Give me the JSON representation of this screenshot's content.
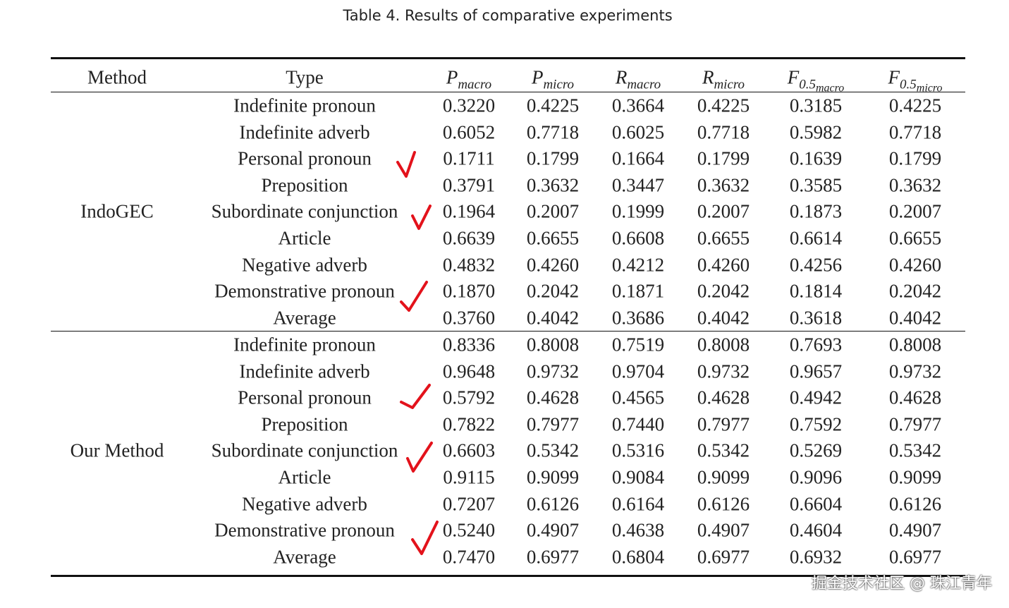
{
  "caption": "Table 4.  Results of comparative experiments",
  "header": {
    "method": "Method",
    "type": "Type",
    "metrics": [
      {
        "main": "P",
        "sub": "macro"
      },
      {
        "main": "P",
        "sub": "micro"
      },
      {
        "main": "R",
        "sub": "macro"
      },
      {
        "main": "R",
        "sub": "micro"
      },
      {
        "main": "F",
        "sub": "0.5",
        "subsub": "macro"
      },
      {
        "main": "F",
        "sub": "0.5",
        "subsub": "micro"
      }
    ]
  },
  "groups": [
    {
      "method": "IndoGEC",
      "rows": [
        {
          "type": "Indefinite pronoun",
          "values": [
            "0.3220",
            "0.4225",
            "0.3664",
            "0.4225",
            "0.3185",
            "0.4225"
          ]
        },
        {
          "type": "Indefinite adverb",
          "values": [
            "0.6052",
            "0.7718",
            "0.6025",
            "0.7718",
            "0.5982",
            "0.7718"
          ]
        },
        {
          "type": "Personal pronoun",
          "values": [
            "0.1711",
            "0.1799",
            "0.1664",
            "0.1799",
            "0.1639",
            "0.1799"
          ]
        },
        {
          "type": "Preposition",
          "values": [
            "0.3791",
            "0.3632",
            "0.3447",
            "0.3632",
            "0.3585",
            "0.3632"
          ]
        },
        {
          "type": "Subordinate conjunction",
          "values": [
            "0.1964",
            "0.2007",
            "0.1999",
            "0.2007",
            "0.1873",
            "0.2007"
          ]
        },
        {
          "type": "Article",
          "values": [
            "0.6639",
            "0.6655",
            "0.6608",
            "0.6655",
            "0.6614",
            "0.6655"
          ]
        },
        {
          "type": "Negative adverb",
          "values": [
            "0.4832",
            "0.4260",
            "0.4212",
            "0.4260",
            "0.4256",
            "0.4260"
          ]
        },
        {
          "type": "Demonstrative pronoun",
          "values": [
            "0.1870",
            "0.2042",
            "0.1871",
            "0.2042",
            "0.1814",
            "0.2042"
          ]
        },
        {
          "type": "Average",
          "values": [
            "0.3760",
            "0.4042",
            "0.3686",
            "0.4042",
            "0.3618",
            "0.4042"
          ]
        }
      ]
    },
    {
      "method": "Our Method",
      "rows": [
        {
          "type": "Indefinite pronoun",
          "values": [
            "0.8336",
            "0.8008",
            "0.7519",
            "0.8008",
            "0.7693",
            "0.8008"
          ]
        },
        {
          "type": "Indefinite adverb",
          "values": [
            "0.9648",
            "0.9732",
            "0.9704",
            "0.9732",
            "0.9657",
            "0.9732"
          ]
        },
        {
          "type": "Personal pronoun",
          "values": [
            "0.5792",
            "0.4628",
            "0.4565",
            "0.4628",
            "0.4942",
            "0.4628"
          ]
        },
        {
          "type": "Preposition",
          "values": [
            "0.7822",
            "0.7977",
            "0.7440",
            "0.7977",
            "0.7592",
            "0.7977"
          ]
        },
        {
          "type": "Subordinate conjunction",
          "values": [
            "0.6603",
            "0.5342",
            "0.5316",
            "0.5342",
            "0.5269",
            "0.5342"
          ]
        },
        {
          "type": "Article",
          "values": [
            "0.9115",
            "0.9099",
            "0.9084",
            "0.9099",
            "0.9096",
            "0.9099"
          ]
        },
        {
          "type": "Negative adverb",
          "values": [
            "0.7207",
            "0.6126",
            "0.6164",
            "0.6126",
            "0.6604",
            "0.6126"
          ]
        },
        {
          "type": "Demonstrative pronoun",
          "values": [
            "0.5240",
            "0.4907",
            "0.4638",
            "0.4907",
            "0.4604",
            "0.4907"
          ]
        },
        {
          "type": "Average",
          "values": [
            "0.7470",
            "0.6977",
            "0.6804",
            "0.6977",
            "0.6932",
            "0.6977"
          ]
        }
      ]
    }
  ],
  "watermark": "掘金技术社区 @ 珠江青年"
}
